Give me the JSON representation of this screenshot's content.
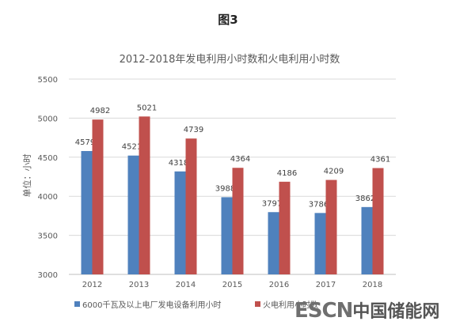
{
  "figure_label": "图3",
  "watermark": {
    "brand": "ESCN",
    "tagline": "中国储能网"
  },
  "chart_data": {
    "type": "bar",
    "title": "2012-2018年发电利用小时数和火电利用小时数",
    "xlabel": "",
    "ylabel": "单位：小时",
    "ylim": [
      3000,
      5500
    ],
    "yticks": [
      3000,
      3500,
      4000,
      4500,
      5000,
      5500
    ],
    "categories": [
      "2012",
      "2013",
      "2014",
      "2015",
      "2016",
      "2017",
      "2018"
    ],
    "grid": true,
    "legend_position": "bottom",
    "series": [
      {
        "name": "6000千瓦及以上电厂发电设备利用小时",
        "color": "#4f81bd",
        "values": [
          4579,
          4521,
          4318,
          3988,
          3797,
          3786,
          3862
        ]
      },
      {
        "name": "火电利用小时数",
        "color": "#c0504d",
        "values": [
          4982,
          5021,
          4739,
          4364,
          4186,
          4209,
          4361
        ]
      }
    ]
  }
}
